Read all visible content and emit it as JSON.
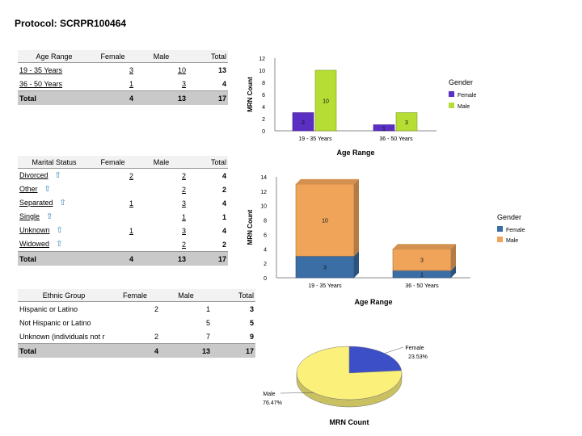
{
  "protocol_title": "Protocol: SCRPR100464",
  "age_table": {
    "headers": [
      "Age Range",
      "Female",
      "Male",
      "Total"
    ],
    "rows": [
      {
        "label": "19 - 35 Years",
        "female": "3",
        "male": "10",
        "total": "13"
      },
      {
        "label": "36 - 50 Years",
        "female": "1",
        "male": "3",
        "total": "4"
      }
    ],
    "total": {
      "label": "Total",
      "female": "4",
      "male": "13",
      "total": "17"
    }
  },
  "marital_table": {
    "headers": [
      "Marital Status",
      "Female",
      "Male",
      "Total"
    ],
    "rows": [
      {
        "label": "Divorced",
        "female": "2",
        "male": "2",
        "total": "4"
      },
      {
        "label": "Other",
        "female": "",
        "male": "2",
        "total": "2"
      },
      {
        "label": "Separated",
        "female": "1",
        "male": "3",
        "total": "4"
      },
      {
        "label": "Single",
        "female": "",
        "male": "1",
        "total": "1"
      },
      {
        "label": "Unknown",
        "female": "1",
        "male": "3",
        "total": "4"
      },
      {
        "label": "Widowed",
        "female": "",
        "male": "2",
        "total": "2"
      }
    ],
    "total": {
      "label": "Total",
      "female": "4",
      "male": "13",
      "total": "17"
    },
    "row_icon": "drill-down-arrow-icon"
  },
  "ethnic_table": {
    "headers": [
      "Ethnic Group",
      "Female",
      "Male",
      "Total"
    ],
    "rows": [
      {
        "label": "Hispanic or Latino",
        "female": "2",
        "male": "1",
        "total": "3"
      },
      {
        "label": "Not Hispanic or Latino",
        "female": "",
        "male": "5",
        "total": "5"
      },
      {
        "label": "Unknown (individuals not r",
        "female": "2",
        "male": "7",
        "total": "9"
      }
    ],
    "total": {
      "label": "Total",
      "female": "4",
      "male": "13",
      "total": "17"
    }
  },
  "chart_data": [
    {
      "type": "bar",
      "categories": [
        "19 - 35 Years",
        "36 - 50 Years"
      ],
      "series": [
        {
          "name": "Female",
          "values": [
            3,
            1
          ],
          "color": "#5b2fc4"
        },
        {
          "name": "Male",
          "values": [
            10,
            3
          ],
          "color": "#b5dd33"
        }
      ],
      "xlabel": "Age Range",
      "ylabel": "MRN Count",
      "ylim": [
        0,
        12
      ],
      "yticks": [
        0,
        2,
        4,
        6,
        8,
        10,
        12
      ],
      "legend_title": "Gender",
      "legend_position": "right",
      "grid": false
    },
    {
      "type": "bar",
      "stacked": true,
      "categories": [
        "19 - 35 Years",
        "36 - 50 Years"
      ],
      "series": [
        {
          "name": "Female",
          "values": [
            3,
            1
          ],
          "color": "#3a6ea5"
        },
        {
          "name": "Male",
          "values": [
            10,
            3
          ],
          "color": "#f0a45a"
        }
      ],
      "xlabel": "Age Range",
      "ylabel": "MRN Count",
      "ylim": [
        0,
        14
      ],
      "yticks": [
        0,
        2,
        4,
        6,
        8,
        10,
        12,
        14
      ],
      "legend_title": "Gender",
      "legend_position": "right",
      "grid": false
    },
    {
      "type": "pie",
      "title": "MRN Count",
      "slices": [
        {
          "name": "Female",
          "value": 23.53,
          "label": "23.53%",
          "color": "#3d4fc7"
        },
        {
          "name": "Male",
          "value": 76.47,
          "label": "76.47%",
          "color": "#fbf07a"
        }
      ]
    }
  ]
}
